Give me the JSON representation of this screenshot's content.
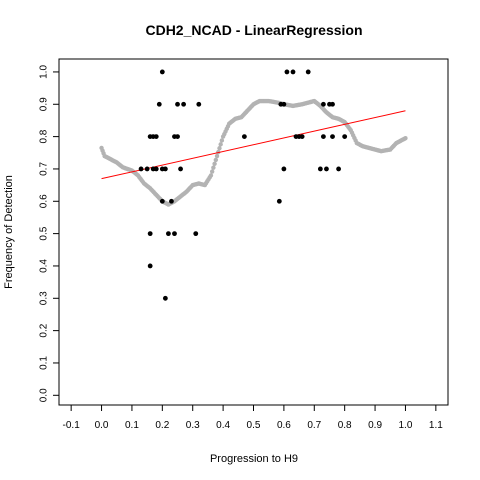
{
  "chart_data": {
    "type": "scatter",
    "title": "CDH2_NCAD - LinearRegression",
    "xlabel": "Progression to H9",
    "ylabel": "Frequency of Detection",
    "xlim": [
      -0.14,
      1.14
    ],
    "ylim": [
      -0.03,
      1.04
    ],
    "xticks": [
      "-0.1",
      "0.0",
      "0.1",
      "0.2",
      "0.3",
      "0.4",
      "0.5",
      "0.6",
      "0.7",
      "0.8",
      "0.9",
      "1.0",
      "1.1"
    ],
    "yticks": [
      "0.0",
      "0.1",
      "0.2",
      "0.3",
      "0.4",
      "0.5",
      "0.6",
      "0.7",
      "0.8",
      "0.9",
      "1.0"
    ],
    "grid": false,
    "colors": {
      "points": "#000000",
      "smooth": "#b3b3b3",
      "regression": "#ff0000",
      "frame": "#000000"
    },
    "series": [
      {
        "kind": "observed-points",
        "points": [
          [
            0.13,
            0.7
          ],
          [
            0.15,
            0.7
          ],
          [
            0.16,
            0.5
          ],
          [
            0.16,
            0.4
          ],
          [
            0.16,
            0.8
          ],
          [
            0.17,
            0.8
          ],
          [
            0.17,
            0.7
          ],
          [
            0.18,
            0.8
          ],
          [
            0.18,
            0.7
          ],
          [
            0.19,
            0.9
          ],
          [
            0.2,
            1.0
          ],
          [
            0.2,
            0.7
          ],
          [
            0.2,
            0.6
          ],
          [
            0.21,
            0.3
          ],
          [
            0.21,
            0.7
          ],
          [
            0.22,
            0.5
          ],
          [
            0.23,
            0.6
          ],
          [
            0.24,
            0.5
          ],
          [
            0.24,
            0.8
          ],
          [
            0.25,
            0.8
          ],
          [
            0.25,
            0.9
          ],
          [
            0.26,
            0.7
          ],
          [
            0.27,
            0.9
          ],
          [
            0.31,
            0.5
          ],
          [
            0.32,
            0.9
          ],
          [
            0.47,
            0.8
          ],
          [
            0.585,
            0.6
          ],
          [
            0.59,
            0.9
          ],
          [
            0.6,
            0.7
          ],
          [
            0.6,
            0.9
          ],
          [
            0.61,
            1.0
          ],
          [
            0.63,
            1.0
          ],
          [
            0.64,
            0.8
          ],
          [
            0.65,
            0.8
          ],
          [
            0.66,
            0.8
          ],
          [
            0.68,
            1.0
          ],
          [
            0.72,
            0.7
          ],
          [
            0.73,
            0.8
          ],
          [
            0.73,
            0.9
          ],
          [
            0.74,
            0.7
          ],
          [
            0.75,
            0.9
          ],
          [
            0.76,
            0.9
          ],
          [
            0.76,
            0.8
          ],
          [
            0.78,
            0.7
          ],
          [
            0.8,
            0.8
          ]
        ]
      },
      {
        "kind": "smoothed-curve",
        "points": [
          [
            0.0,
            0.765
          ],
          [
            0.01,
            0.74
          ],
          [
            0.03,
            0.73
          ],
          [
            0.05,
            0.72
          ],
          [
            0.07,
            0.705
          ],
          [
            0.1,
            0.695
          ],
          [
            0.12,
            0.68
          ],
          [
            0.14,
            0.655
          ],
          [
            0.16,
            0.64
          ],
          [
            0.18,
            0.62
          ],
          [
            0.2,
            0.6
          ],
          [
            0.22,
            0.59
          ],
          [
            0.24,
            0.6
          ],
          [
            0.26,
            0.615
          ],
          [
            0.28,
            0.63
          ],
          [
            0.3,
            0.65
          ],
          [
            0.32,
            0.655
          ],
          [
            0.34,
            0.65
          ],
          [
            0.36,
            0.68
          ],
          [
            0.38,
            0.74
          ],
          [
            0.4,
            0.8
          ],
          [
            0.42,
            0.84
          ],
          [
            0.44,
            0.855
          ],
          [
            0.46,
            0.86
          ],
          [
            0.48,
            0.88
          ],
          [
            0.5,
            0.9
          ],
          [
            0.52,
            0.91
          ],
          [
            0.55,
            0.91
          ],
          [
            0.58,
            0.905
          ],
          [
            0.6,
            0.9
          ],
          [
            0.63,
            0.895
          ],
          [
            0.66,
            0.9
          ],
          [
            0.7,
            0.91
          ],
          [
            0.72,
            0.895
          ],
          [
            0.74,
            0.875
          ],
          [
            0.76,
            0.86
          ],
          [
            0.78,
            0.855
          ],
          [
            0.8,
            0.845
          ],
          [
            0.82,
            0.82
          ],
          [
            0.84,
            0.78
          ],
          [
            0.86,
            0.77
          ],
          [
            0.88,
            0.765
          ],
          [
            0.9,
            0.76
          ],
          [
            0.92,
            0.755
          ],
          [
            0.95,
            0.76
          ],
          [
            0.97,
            0.78
          ],
          [
            0.99,
            0.79
          ],
          [
            1.0,
            0.795
          ]
        ]
      },
      {
        "kind": "regression-line",
        "points": [
          [
            0.0,
            0.67
          ],
          [
            1.0,
            0.88
          ]
        ]
      }
    ]
  }
}
